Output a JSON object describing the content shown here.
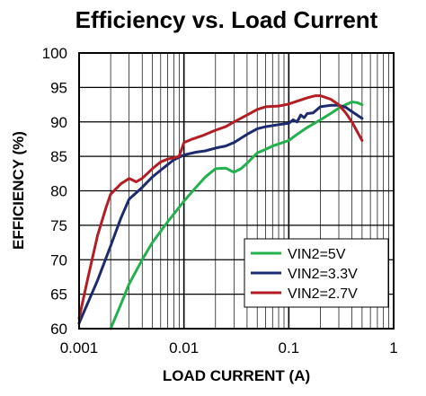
{
  "chart_data": {
    "type": "line",
    "title": "Efficiency vs. Load Current",
    "xlabel": "LOAD CURRENT (A)",
    "ylabel": "EFFICIENCY (%)",
    "x_scale": "log",
    "xlim": [
      0.001,
      1
    ],
    "ylim": [
      60,
      100
    ],
    "x_ticks": [
      "0.001",
      "0.01",
      "0.1",
      "1"
    ],
    "y_ticks": [
      "60",
      "65",
      "70",
      "75",
      "80",
      "85",
      "90",
      "95",
      "100"
    ],
    "grid": true,
    "legend_position": "bottom-right",
    "series": [
      {
        "name": "VIN2=5V",
        "color": "#22b14c",
        "points": [
          [
            0.002,
            60
          ],
          [
            0.0025,
            63.5
          ],
          [
            0.003,
            66.5
          ],
          [
            0.004,
            70
          ],
          [
            0.005,
            72.5
          ],
          [
            0.007,
            75.5
          ],
          [
            0.01,
            78.5
          ],
          [
            0.013,
            80.5
          ],
          [
            0.016,
            82
          ],
          [
            0.02,
            83.2
          ],
          [
            0.025,
            83.3
          ],
          [
            0.03,
            82.7
          ],
          [
            0.035,
            83.2
          ],
          [
            0.04,
            84
          ],
          [
            0.05,
            85.5
          ],
          [
            0.06,
            86
          ],
          [
            0.07,
            86.5
          ],
          [
            0.08,
            86.8
          ],
          [
            0.1,
            87.3
          ],
          [
            0.12,
            88.2
          ],
          [
            0.15,
            89.2
          ],
          [
            0.2,
            90.3
          ],
          [
            0.25,
            91.2
          ],
          [
            0.3,
            92
          ],
          [
            0.35,
            92.5
          ],
          [
            0.4,
            92.9
          ],
          [
            0.45,
            92.8
          ],
          [
            0.5,
            92.5
          ]
        ]
      },
      {
        "name": "VIN2=3.3V",
        "color": "#1c2a6e",
        "points": [
          [
            0.001,
            60.8
          ],
          [
            0.0015,
            67
          ],
          [
            0.002,
            72
          ],
          [
            0.0025,
            76
          ],
          [
            0.003,
            78.8
          ],
          [
            0.004,
            80.5
          ],
          [
            0.005,
            82
          ],
          [
            0.006,
            83
          ],
          [
            0.007,
            83.8
          ],
          [
            0.008,
            84.5
          ],
          [
            0.01,
            85.2
          ],
          [
            0.013,
            85.6
          ],
          [
            0.016,
            85.8
          ],
          [
            0.02,
            86.2
          ],
          [
            0.025,
            86.5
          ],
          [
            0.03,
            87
          ],
          [
            0.04,
            88.2
          ],
          [
            0.05,
            89
          ],
          [
            0.06,
            89.3
          ],
          [
            0.08,
            89.6
          ],
          [
            0.1,
            89.8
          ],
          [
            0.11,
            90.3
          ],
          [
            0.12,
            90
          ],
          [
            0.13,
            91
          ],
          [
            0.14,
            90.6
          ],
          [
            0.15,
            91.2
          ],
          [
            0.17,
            91.3
          ],
          [
            0.2,
            92.2
          ],
          [
            0.25,
            92.4
          ],
          [
            0.3,
            92.4
          ],
          [
            0.35,
            92.1
          ],
          [
            0.4,
            91.5
          ],
          [
            0.5,
            90.5
          ]
        ]
      },
      {
        "name": "VIN2=2.7V",
        "color": "#b21e23",
        "points": [
          [
            0.001,
            61.5
          ],
          [
            0.0012,
            67
          ],
          [
            0.0015,
            73.5
          ],
          [
            0.0018,
            77.5
          ],
          [
            0.002,
            79.5
          ],
          [
            0.0025,
            81
          ],
          [
            0.003,
            81.8
          ],
          [
            0.0035,
            81.3
          ],
          [
            0.004,
            81.8
          ],
          [
            0.005,
            83.2
          ],
          [
            0.006,
            84.2
          ],
          [
            0.007,
            84.6
          ],
          [
            0.008,
            84.8
          ],
          [
            0.009,
            85
          ],
          [
            0.01,
            87
          ],
          [
            0.012,
            87.5
          ],
          [
            0.015,
            88
          ],
          [
            0.02,
            88.8
          ],
          [
            0.025,
            89.3
          ],
          [
            0.03,
            90
          ],
          [
            0.04,
            91
          ],
          [
            0.05,
            91.8
          ],
          [
            0.06,
            92.2
          ],
          [
            0.08,
            92.3
          ],
          [
            0.1,
            92.6
          ],
          [
            0.12,
            93
          ],
          [
            0.15,
            93.5
          ],
          [
            0.18,
            93.8
          ],
          [
            0.2,
            93.8
          ],
          [
            0.25,
            93.3
          ],
          [
            0.3,
            92.5
          ],
          [
            0.35,
            91.3
          ],
          [
            0.4,
            90
          ],
          [
            0.5,
            87.3
          ]
        ]
      }
    ]
  }
}
